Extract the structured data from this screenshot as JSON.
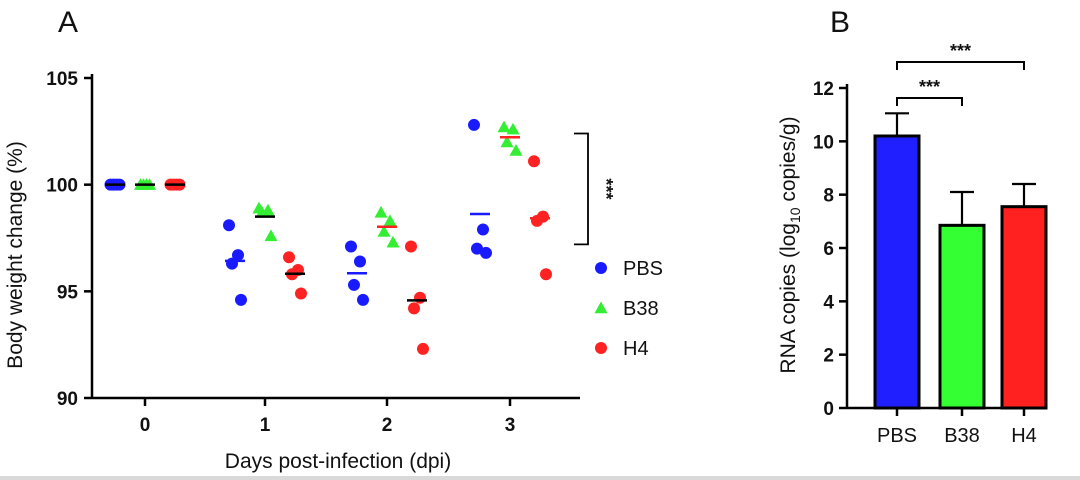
{
  "chart_data": [
    {
      "type": "scatter",
      "panel_label": "A",
      "xlabel": "Days post-infection (dpi)",
      "ylabel": "Body weight change (%)",
      "categories": [
        "0",
        "1",
        "2",
        "3"
      ],
      "ylim": [
        90,
        105
      ],
      "yticks": [
        "90",
        "95",
        "100",
        "105"
      ],
      "legend_position": "right",
      "series": [
        {
          "name": "PBS",
          "color": "#1a1aff",
          "marker": "circle",
          "mean_color": "#1a1aff",
          "values": [
            [
              100.0,
              100.0,
              100.0,
              100.0
            ],
            [
              98.1,
              96.7,
              96.3,
              94.6
            ],
            [
              97.1,
              96.4,
              95.3,
              94.6
            ],
            [
              102.8,
              97.9,
              97.0,
              96.8
            ]
          ]
        },
        {
          "name": "B38",
          "color": "#33ee33",
          "marker": "triangle",
          "mean_color": "#000000",
          "values": [
            [
              100.0,
              100.0,
              100.0,
              100.0
            ],
            [
              98.9,
              98.8,
              98.7,
              97.6
            ],
            [
              98.7,
              98.3,
              97.8,
              97.3
            ],
            [
              102.7,
              102.6,
              102.0,
              101.6
            ]
          ]
        },
        {
          "name": "H4",
          "color": "#ff2222",
          "marker": "circle",
          "mean_color": "#000000",
          "values": [
            [
              100.0,
              100.0,
              100.0,
              100.0
            ],
            [
              96.6,
              96.0,
              95.8,
              94.9
            ],
            [
              97.1,
              94.7,
              94.2,
              92.3
            ],
            [
              101.1,
              98.5,
              98.3,
              95.8
            ]
          ]
        }
      ],
      "mean_markers": [
        [
          "#000000",
          "#000000",
          "#000000"
        ],
        [
          "#1a1aff",
          "#000000",
          "#000000"
        ],
        [
          "#1a1aff",
          "#ff2222",
          "#000000"
        ],
        [
          "#1a1aff",
          "#ff2222",
          "#ff2222"
        ]
      ],
      "significance": {
        "label": "***",
        "between": "day 3 groups"
      }
    },
    {
      "type": "bar",
      "panel_label": "B",
      "categories": [
        "PBS",
        "B38",
        "H4"
      ],
      "values": [
        10.2,
        6.85,
        7.55
      ],
      "errors": [
        0.85,
        1.25,
        0.85
      ],
      "colors": [
        "#1f1fff",
        "#33ff33",
        "#ff2020"
      ],
      "ylabel_pre": "RNA copies (log",
      "ylabel_sub": "10",
      "ylabel_post": " copies/g)",
      "ylim": [
        0,
        12
      ],
      "yticks": [
        "0",
        "2",
        "4",
        "6",
        "8",
        "10",
        "12"
      ],
      "significance": [
        {
          "from": "PBS",
          "to": "B38",
          "label": "***"
        },
        {
          "from": "PBS",
          "to": "H4",
          "label": "***"
        }
      ]
    }
  ]
}
